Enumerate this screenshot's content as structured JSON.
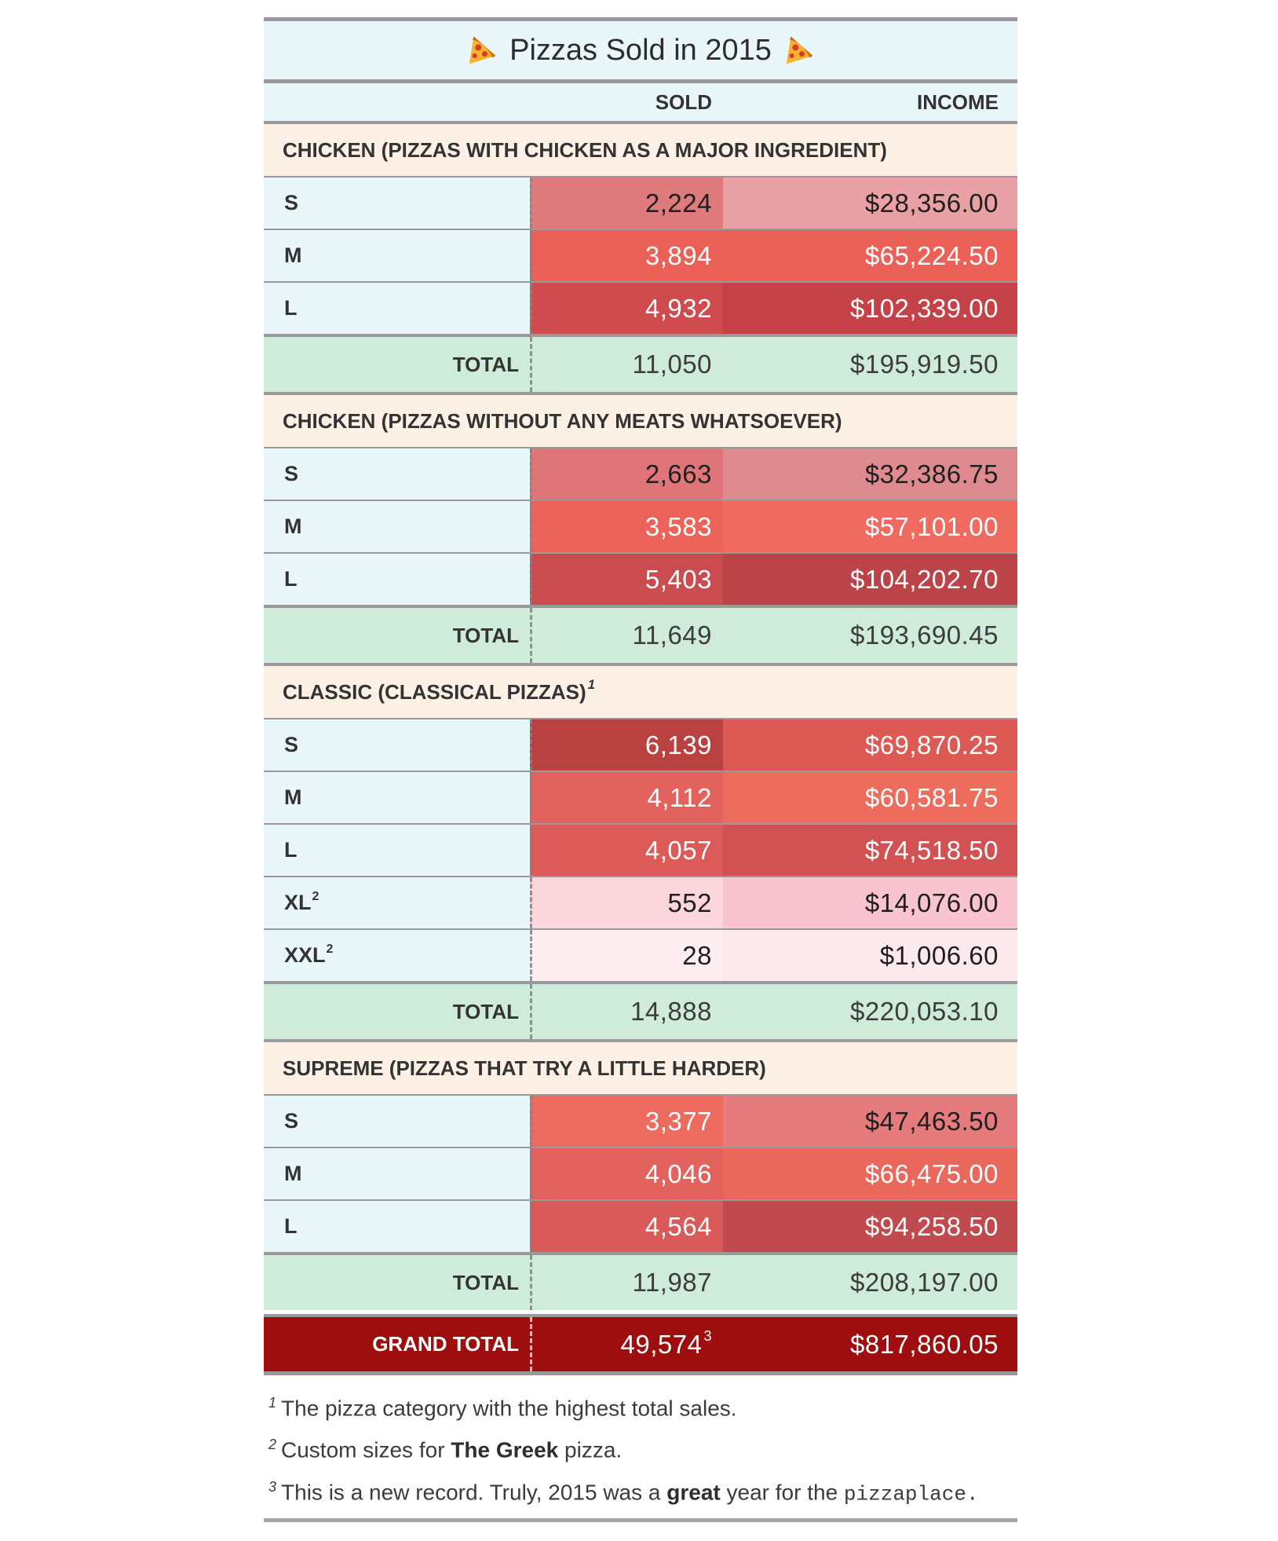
{
  "chart_data": {
    "type": "table",
    "title": "Pizzas Sold in 2015",
    "title_icons": [
      "pizza-icon",
      "pizza-icon"
    ],
    "columns": {
      "sold": "SOLD",
      "income": "INCOME"
    },
    "total_label": "TOTAL",
    "style": {
      "header_bg": "#eaf7fa",
      "category_bg": "#fdf1e5",
      "total_bg": "#cfecdb",
      "grand_total_bg": "#9e0e0e",
      "border_gray": "#999999"
    },
    "sections": [
      {
        "header": "CHICKEN (PIZZAS WITH CHICKEN AS A MAJOR INGREDIENT)",
        "header_footnote": "",
        "rows": [
          {
            "label": "S",
            "sup": "",
            "sold": "2,224",
            "income": "$28,356.00",
            "sold_bg": "#e07b7d",
            "sold_fg": "dark",
            "income_bg": "#e9a1a5",
            "income_fg": "dark"
          },
          {
            "label": "M",
            "sup": "",
            "sold": "3,894",
            "income": "$65,224.50",
            "sold_bg": "#ec6157",
            "sold_fg": "light",
            "income_bg": "#ec6157",
            "income_fg": "light"
          },
          {
            "label": "L",
            "sup": "",
            "sold": "4,932",
            "income": "$102,339.00",
            "sold_bg": "#cf4b4d",
            "sold_fg": "light",
            "income_bg": "#c44247",
            "income_fg": "light"
          }
        ],
        "total": {
          "sold": "11,050",
          "income": "$195,919.50"
        }
      },
      {
        "header": "CHICKEN (PIZZAS WITHOUT ANY MEATS WHATSOEVER)",
        "header_footnote": "",
        "rows": [
          {
            "label": "S",
            "sup": "",
            "sold": "2,663",
            "income": "$32,386.75",
            "sold_bg": "#df7578",
            "sold_fg": "dark",
            "income_bg": "#dd8b8f",
            "income_fg": "dark"
          },
          {
            "label": "M",
            "sup": "",
            "sold": "3,583",
            "income": "$57,101.00",
            "sold_bg": "#ec6459",
            "sold_fg": "light",
            "income_bg": "#ef6a5f",
            "income_fg": "light"
          },
          {
            "label": "L",
            "sup": "",
            "sold": "5,403",
            "income": "$104,202.70",
            "sold_bg": "#ca4c4f",
            "sold_fg": "light",
            "income_bg": "#bc4347",
            "income_fg": "light"
          }
        ],
        "total": {
          "sold": "11,649",
          "income": "$193,690.45"
        }
      },
      {
        "header": "CLASSIC (CLASSICAL PIZZAS)",
        "header_footnote": "1",
        "rows": [
          {
            "label": "S",
            "sup": "",
            "sold": "6,139",
            "income": "$69,870.25",
            "sold_bg": "#b94140",
            "sold_fg": "light",
            "income_bg": "#dc5954",
            "income_fg": "light"
          },
          {
            "label": "M",
            "sup": "",
            "sold": "4,112",
            "income": "$60,581.75",
            "sold_bg": "#e2625d",
            "sold_fg": "light",
            "income_bg": "#ed6c5c",
            "income_fg": "light"
          },
          {
            "label": "L",
            "sup": "",
            "sold": "4,057",
            "income": "$74,518.50",
            "sold_bg": "#dc5b58",
            "sold_fg": "light",
            "income_bg": "#d25254",
            "income_fg": "light"
          },
          {
            "label": "XL",
            "sup": "2",
            "sold": "552",
            "income": "$14,076.00",
            "sold_bg": "#fbd6dd",
            "sold_fg": "dark",
            "income_bg": "#f9c3cf",
            "income_fg": "dark"
          },
          {
            "label": "XXL",
            "sup": "2",
            "sold": "28",
            "income": "$1,006.60",
            "sold_bg": "#fdedf1",
            "sold_fg": "dark",
            "income_bg": "#fce9ee",
            "income_fg": "dark"
          }
        ],
        "total": {
          "sold": "14,888",
          "income": "$220,053.10"
        }
      },
      {
        "header": "SUPREME (PIZZAS THAT TRY A LITTLE HARDER)",
        "header_footnote": "",
        "rows": [
          {
            "label": "S",
            "sup": "",
            "sold": "3,377",
            "income": "$47,463.50",
            "sold_bg": "#ed6a5e",
            "sold_fg": "light",
            "income_bg": "#e57b7d",
            "income_fg": "dark"
          },
          {
            "label": "M",
            "sup": "",
            "sold": "4,046",
            "income": "$66,475.00",
            "sold_bg": "#e3625e",
            "sold_fg": "light",
            "income_bg": "#ea675c",
            "income_fg": "light"
          },
          {
            "label": "L",
            "sup": "",
            "sold": "4,564",
            "income": "$94,258.50",
            "sold_bg": "#da5a59",
            "sold_fg": "light",
            "income_bg": "#c04a4d",
            "income_fg": "light"
          }
        ],
        "total": {
          "sold": "11,987",
          "income": "$208,197.00"
        }
      }
    ],
    "grand_total": {
      "label": "GRAND TOTAL",
      "sold": "49,574",
      "sold_footnote": "3",
      "income": "$817,860.05"
    },
    "footnotes": [
      {
        "marker": "1",
        "segments": [
          {
            "text": "The pizza category with the highest total sales.",
            "style": "normal"
          }
        ]
      },
      {
        "marker": "2",
        "segments": [
          {
            "text": "Custom sizes for ",
            "style": "normal"
          },
          {
            "text": "The Greek",
            "style": "bold"
          },
          {
            "text": " pizza.",
            "style": "normal"
          }
        ]
      },
      {
        "marker": "3",
        "segments": [
          {
            "text": "This is a new record. Truly, 2015 was a ",
            "style": "normal"
          },
          {
            "text": "great",
            "style": "bold"
          },
          {
            "text": " year for the ",
            "style": "normal"
          },
          {
            "text": "pizzaplace",
            "style": "code"
          },
          {
            "text": ".",
            "style": "code"
          }
        ]
      }
    ]
  }
}
